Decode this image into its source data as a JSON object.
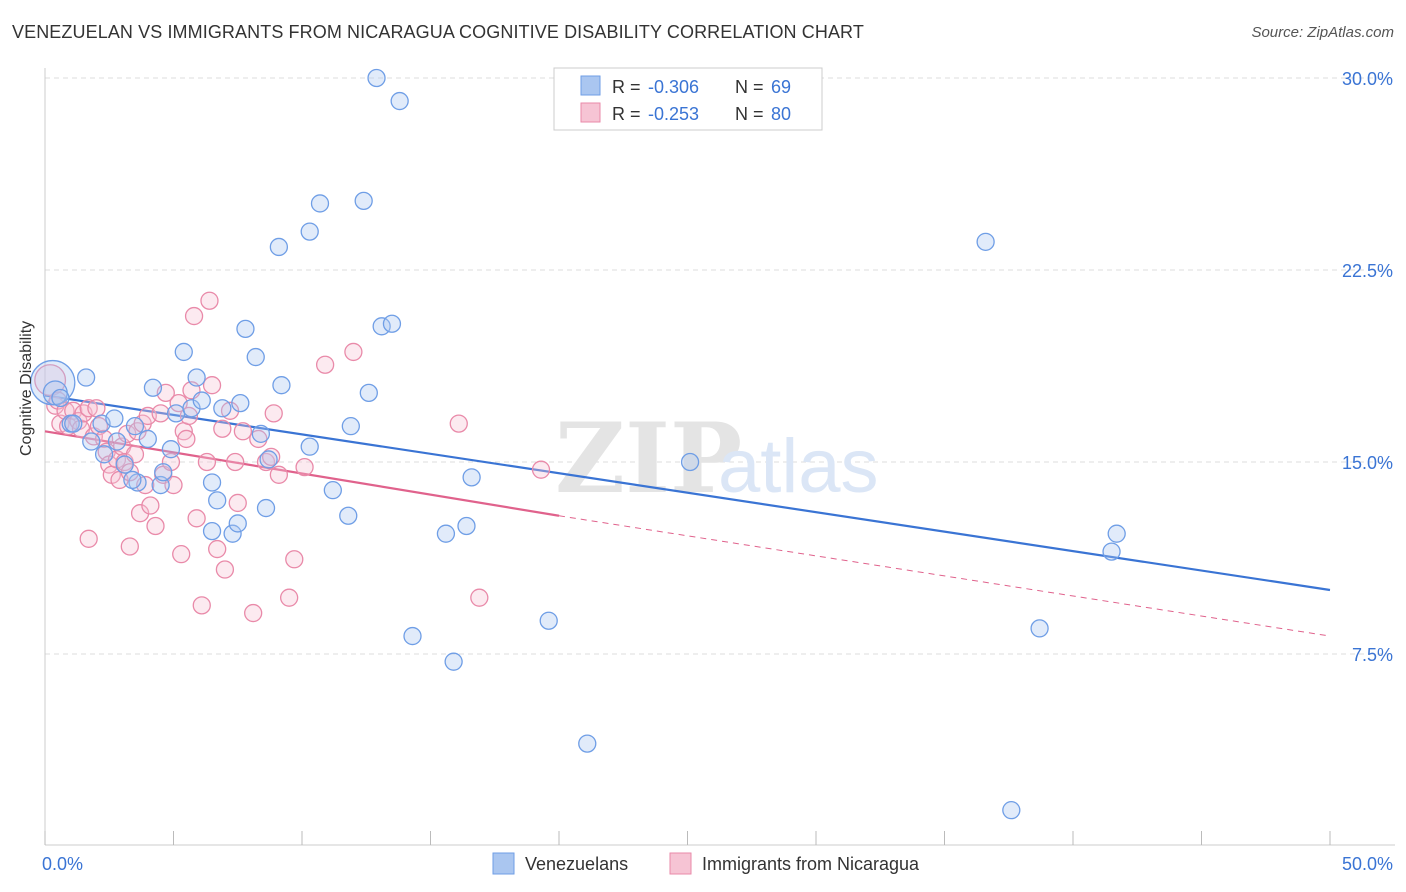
{
  "header": {
    "title": "VENEZUELAN VS IMMIGRANTS FROM NICARAGUA COGNITIVE DISABILITY CORRELATION CHART",
    "source": "Source: ZipAtlas.com"
  },
  "watermark": {
    "zip": "ZIP",
    "atlas": "atlas"
  },
  "colors": {
    "blue": "#6f9ee6",
    "blue_fill": "#aac6f0",
    "blue_line": "#3a74d4",
    "pink": "#e98aa9",
    "pink_fill": "#f6c4d4",
    "pink_line": "#e0628c",
    "value_text": "#3a74d4",
    "grid": "#dddddd"
  },
  "legend": {
    "rows": [
      {
        "r_label": "R =",
        "r_value": "-0.306",
        "n_label": "N =",
        "n_value": "69"
      },
      {
        "r_label": "R =",
        "r_value": "-0.253",
        "n_label": "N =",
        "n_value": "80"
      }
    ]
  },
  "bottom_legend": {
    "series1": "Venezuelans",
    "series2": "Immigrants from Nicaragua"
  },
  "chart_data": {
    "type": "scatter",
    "title": "VENEZUELAN VS IMMIGRANTS FROM NICARAGUA COGNITIVE DISABILITY CORRELATION CHART",
    "ylabel": "Cognitive Disability",
    "xlim": [
      0,
      50
    ],
    "ylim": [
      0,
      31.5
    ],
    "x_tick_labels": [
      "0.0%",
      "50.0%"
    ],
    "y_ticks": [
      7.5,
      15.0,
      22.5,
      30.0
    ],
    "y_tick_labels": [
      "7.5%",
      "15.0%",
      "22.5%",
      "30.0%"
    ],
    "grid": true,
    "legend_position": "top-center",
    "series": [
      {
        "name": "Venezuelans",
        "r": -0.306,
        "n": 69,
        "trend": {
          "x": [
            0,
            50
          ],
          "y": [
            17.6,
            10.0
          ]
        },
        "points": [
          [
            0.3,
            18.1,
            26
          ],
          [
            0.4,
            17.7,
            14
          ],
          [
            0.6,
            17.5,
            10
          ],
          [
            1.0,
            16.5,
            10
          ],
          [
            1.1,
            16.5,
            10
          ],
          [
            1.6,
            18.3,
            10
          ],
          [
            1.8,
            15.8,
            10
          ],
          [
            2.2,
            16.5,
            10
          ],
          [
            2.3,
            15.3,
            10
          ],
          [
            2.8,
            15.8,
            10
          ],
          [
            2.7,
            16.7,
            10
          ],
          [
            3.1,
            14.9,
            10
          ],
          [
            3.5,
            16.4,
            10
          ],
          [
            3.6,
            14.2,
            10
          ],
          [
            3.4,
            14.3,
            10
          ],
          [
            4.0,
            15.9,
            10
          ],
          [
            4.2,
            17.9,
            10
          ],
          [
            4.5,
            14.1,
            10
          ],
          [
            4.6,
            14.6,
            10
          ],
          [
            4.9,
            15.5,
            10
          ],
          [
            5.1,
            16.9,
            10
          ],
          [
            5.4,
            19.3,
            10
          ],
          [
            5.7,
            17.1,
            10
          ],
          [
            5.9,
            18.3,
            10
          ],
          [
            6.1,
            17.4,
            10
          ],
          [
            6.5,
            12.3,
            10
          ],
          [
            6.5,
            14.2,
            10
          ],
          [
            6.7,
            13.5,
            10
          ],
          [
            6.9,
            17.1,
            10
          ],
          [
            7.3,
            12.2,
            10
          ],
          [
            7.5,
            12.6,
            10
          ],
          [
            7.6,
            17.3,
            10
          ],
          [
            7.8,
            20.2,
            10
          ],
          [
            8.2,
            19.1,
            10
          ],
          [
            8.4,
            16.1,
            10
          ],
          [
            8.6,
            13.2,
            10
          ],
          [
            8.7,
            15.1,
            10
          ],
          [
            9.1,
            23.4,
            10
          ],
          [
            9.2,
            18.0,
            10
          ],
          [
            10.3,
            24.0,
            10
          ],
          [
            10.3,
            15.6,
            10
          ],
          [
            10.7,
            25.1,
            10
          ],
          [
            11.2,
            13.9,
            10
          ],
          [
            11.8,
            12.9,
            10
          ],
          [
            11.9,
            16.4,
            10
          ],
          [
            12.4,
            25.2,
            10
          ],
          [
            12.6,
            17.7,
            10
          ],
          [
            12.9,
            30.0,
            10
          ],
          [
            13.1,
            20.3,
            10
          ],
          [
            13.5,
            20.4,
            10
          ],
          [
            13.8,
            29.1,
            10
          ],
          [
            14.3,
            8.2,
            10
          ],
          [
            15.6,
            12.2,
            10
          ],
          [
            15.9,
            7.2,
            10
          ],
          [
            16.4,
            12.5,
            10
          ],
          [
            16.6,
            14.4,
            10
          ],
          [
            19.6,
            8.8,
            10
          ],
          [
            21.1,
            4.0,
            10
          ],
          [
            25.1,
            15.0,
            10
          ],
          [
            36.6,
            23.6,
            10
          ],
          [
            37.6,
            1.4,
            10
          ],
          [
            38.7,
            8.5,
            10
          ],
          [
            41.5,
            11.5,
            10
          ],
          [
            41.7,
            12.2,
            10
          ]
        ]
      },
      {
        "name": "Immigrants from Nicaragua",
        "r": -0.253,
        "n": 80,
        "trend": {
          "x": [
            0,
            20.0
          ],
          "y": [
            16.2,
            12.9
          ]
        },
        "trend_dashed": {
          "x": [
            20.0,
            50
          ],
          "y": [
            12.9,
            8.2
          ]
        },
        "points": [
          [
            0.2,
            18.2,
            18
          ],
          [
            0.4,
            17.2,
            10
          ],
          [
            0.5,
            17.4,
            10
          ],
          [
            0.6,
            16.5,
            10
          ],
          [
            0.8,
            17.0,
            10
          ],
          [
            0.9,
            16.4,
            10
          ],
          [
            1.1,
            17.0,
            10
          ],
          [
            1.3,
            16.6,
            10
          ],
          [
            1.4,
            16.3,
            10
          ],
          [
            1.5,
            16.9,
            10
          ],
          [
            1.7,
            17.1,
            10
          ],
          [
            1.7,
            12.0,
            10
          ],
          [
            1.9,
            16.0,
            10
          ],
          [
            2.0,
            17.1,
            10
          ],
          [
            2.1,
            16.4,
            10
          ],
          [
            2.3,
            15.9,
            10
          ],
          [
            2.4,
            15.4,
            10
          ],
          [
            2.5,
            14.9,
            10
          ],
          [
            2.6,
            14.5,
            10
          ],
          [
            2.8,
            15.1,
            10
          ],
          [
            2.9,
            14.3,
            10
          ],
          [
            3.0,
            15.6,
            10
          ],
          [
            3.1,
            15.0,
            10
          ],
          [
            3.2,
            16.1,
            10
          ],
          [
            3.3,
            14.6,
            10
          ],
          [
            3.3,
            11.7,
            10
          ],
          [
            3.5,
            15.3,
            10
          ],
          [
            3.6,
            16.2,
            10
          ],
          [
            3.7,
            13.0,
            10
          ],
          [
            3.8,
            16.5,
            10
          ],
          [
            3.9,
            14.1,
            10
          ],
          [
            4.0,
            16.8,
            10
          ],
          [
            4.1,
            13.3,
            10
          ],
          [
            4.3,
            12.5,
            10
          ],
          [
            4.5,
            16.9,
            10
          ],
          [
            4.6,
            14.5,
            10
          ],
          [
            4.7,
            17.7,
            10
          ],
          [
            4.9,
            15.0,
            10
          ],
          [
            5.0,
            14.1,
            10
          ],
          [
            5.2,
            17.3,
            10
          ],
          [
            5.3,
            11.4,
            10
          ],
          [
            5.4,
            16.2,
            10
          ],
          [
            5.5,
            15.9,
            10
          ],
          [
            5.6,
            16.8,
            10
          ],
          [
            5.7,
            17.8,
            10
          ],
          [
            5.8,
            20.7,
            10
          ],
          [
            5.9,
            12.8,
            10
          ],
          [
            6.1,
            9.4,
            10
          ],
          [
            6.3,
            15.0,
            10
          ],
          [
            6.4,
            21.3,
            10
          ],
          [
            6.5,
            18.0,
            10
          ],
          [
            6.7,
            11.6,
            10
          ],
          [
            6.9,
            16.3,
            10
          ],
          [
            7.0,
            10.8,
            10
          ],
          [
            7.2,
            17.0,
            10
          ],
          [
            7.4,
            15.0,
            10
          ],
          [
            7.5,
            13.4,
            10
          ],
          [
            7.7,
            16.2,
            10
          ],
          [
            8.1,
            9.1,
            10
          ],
          [
            8.3,
            15.9,
            10
          ],
          [
            8.6,
            15.0,
            10
          ],
          [
            8.8,
            15.2,
            10
          ],
          [
            8.9,
            16.9,
            10
          ],
          [
            9.1,
            14.5,
            10
          ],
          [
            9.5,
            9.7,
            10
          ],
          [
            9.7,
            11.2,
            10
          ],
          [
            10.1,
            14.8,
            10
          ],
          [
            10.9,
            18.8,
            10
          ],
          [
            12.0,
            19.3,
            10
          ],
          [
            16.1,
            16.5,
            10
          ],
          [
            16.9,
            9.7,
            10
          ],
          [
            19.3,
            14.7,
            10
          ]
        ]
      }
    ]
  }
}
